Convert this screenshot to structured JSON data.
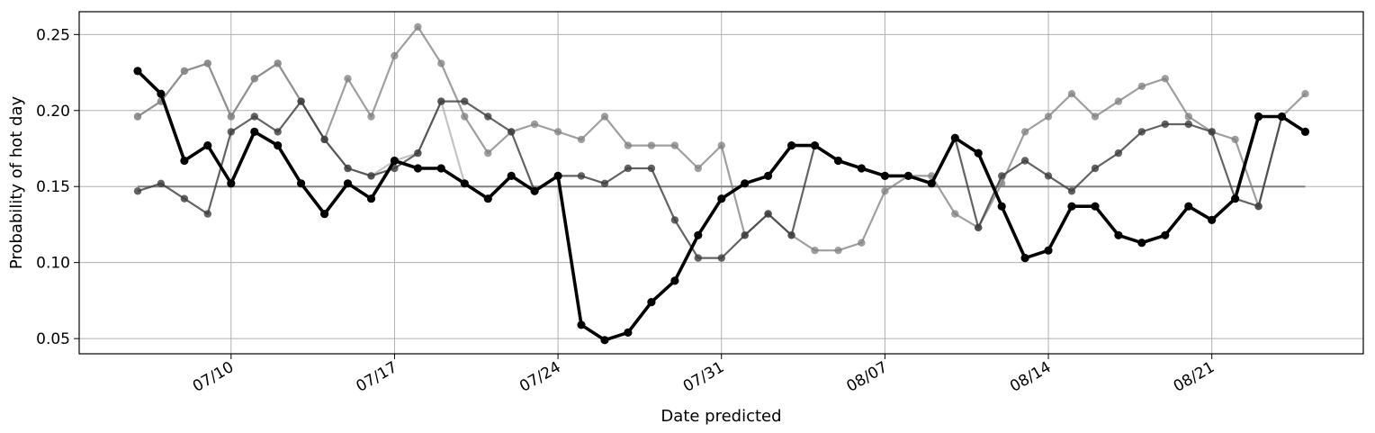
{
  "chart_data": {
    "type": "line",
    "title": "",
    "xlabel": "Date predicted",
    "ylabel": "Probability of hot day",
    "x_start": "07/06",
    "x_tick_labels": [
      "07/10",
      "07/17",
      "07/24",
      "07/31",
      "08/07",
      "08/14",
      "08/21"
    ],
    "y_ticks": [
      0.05,
      0.1,
      0.15,
      0.2,
      0.25
    ],
    "y_tick_labels": [
      "0.05",
      "0.10",
      "0.15",
      "0.20",
      "0.25"
    ],
    "ylim": [
      0.04,
      0.265
    ],
    "grid": true,
    "legend": "none",
    "reference_value": 0.15,
    "series": [
      {
        "color": "#b0b0b0",
        "values": [
          0.196,
          0.206,
          0.226,
          0.231,
          0.196,
          0.221,
          0.231,
          0.206,
          0.181,
          0.162,
          0.157,
          0.167,
          0.172,
          0.206,
          0.152,
          0.142,
          0.157,
          0.147,
          0.157,
          0.059,
          0.049,
          0.054,
          0.074,
          0.088,
          0.118,
          0.142,
          0.152,
          0.157,
          0.177,
          0.177,
          0.167,
          0.162,
          0.157,
          0.157,
          0.152,
          0.182,
          0.172,
          0.137,
          0.103,
          0.108,
          0.137,
          0.137,
          0.118,
          0.113,
          0.118,
          0.137,
          0.128,
          0.142,
          0.196,
          0.196,
          0.186
        ]
      },
      {
        "color": "#7f7f7f",
        "values": [
          0.196,
          0.206,
          0.226,
          0.231,
          0.196,
          0.221,
          0.231,
          0.206,
          0.181,
          0.221,
          0.196,
          0.236,
          0.255,
          0.231,
          0.196,
          0.172,
          0.186,
          0.191,
          0.186,
          0.181,
          0.196,
          0.177,
          0.177,
          0.177,
          0.162,
          0.177,
          0.118,
          0.132,
          0.118,
          0.108,
          0.108,
          0.113,
          0.147,
          0.157,
          0.157,
          0.132,
          0.123,
          0.152,
          0.186,
          0.196,
          0.211,
          0.196,
          0.206,
          0.216,
          0.221,
          0.196,
          0.186,
          0.181,
          0.137,
          0.196,
          0.211
        ]
      },
      {
        "color": "#3c3c3c",
        "values": [
          0.147,
          0.152,
          0.142,
          0.132,
          0.186,
          0.196,
          0.186,
          0.206,
          0.181,
          0.162,
          0.157,
          0.162,
          0.172,
          0.206,
          0.206,
          0.196,
          0.186,
          0.147,
          0.157,
          0.157,
          0.152,
          0.162,
          0.162,
          0.128,
          0.103,
          0.103,
          0.118,
          0.132,
          0.118,
          0.177,
          0.167,
          0.162,
          0.157,
          0.157,
          0.152,
          0.182,
          0.123,
          0.157,
          0.167,
          0.157,
          0.147,
          0.162,
          0.172,
          0.186,
          0.191,
          0.191,
          0.186,
          0.142,
          0.137,
          0.196,
          0.186
        ]
      },
      {
        "color": "#000000",
        "values": [
          0.226,
          0.211,
          0.167,
          0.177,
          0.152,
          0.186,
          0.177,
          0.152,
          0.132,
          0.152,
          0.142,
          0.167,
          0.162,
          0.162,
          0.152,
          0.142,
          0.157,
          0.147,
          0.157,
          0.059,
          0.049,
          0.054,
          0.074,
          0.088,
          0.118,
          0.142,
          0.152,
          0.157,
          0.177,
          0.177,
          0.167,
          0.162,
          0.157,
          0.157,
          0.152,
          0.182,
          0.172,
          0.137,
          0.103,
          0.108,
          0.137,
          0.137,
          0.118,
          0.113,
          0.118,
          0.137,
          0.128,
          0.142,
          0.196,
          0.196,
          0.186
        ]
      }
    ]
  }
}
